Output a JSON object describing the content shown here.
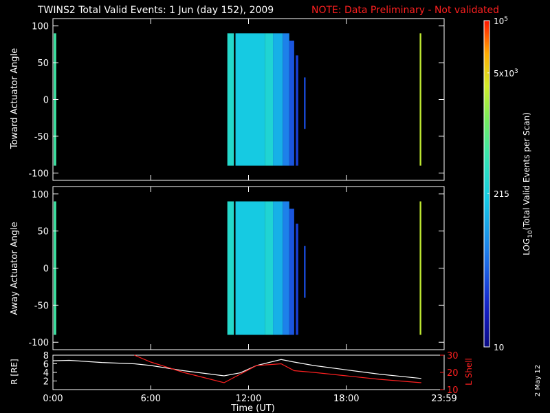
{
  "header": {
    "title": "TWINS2  Total Valid Events:  1 Jun (day 152), 2009",
    "note": "NOTE: Data Preliminary - Not validated",
    "date_stamp": "2 May 12"
  },
  "colors": {
    "background": "#000000",
    "axes": "#ffffff",
    "note": "#ff2020",
    "l_shell": "#ff2020",
    "r_line": "#ffffff"
  },
  "chart_data": [
    {
      "type": "heatmap",
      "panel": "toward",
      "ylabel": "Toward Actuator Angle",
      "xlim": [
        0,
        24
      ],
      "ylim": [
        -110,
        110
      ],
      "yticks": [
        100,
        50,
        0,
        -50,
        -100
      ],
      "ytick_labels": [
        "100",
        "50",
        "0",
        "-50",
        "-100"
      ],
      "columns": [
        {
          "x0": 0.05,
          "x1": 0.2,
          "y0": -90,
          "y1": 90,
          "level": 0.6
        },
        {
          "x0": 10.7,
          "x1": 11.1,
          "y0": -90,
          "y1": 90,
          "level": 0.52
        },
        {
          "x0": 11.2,
          "x1": 13.0,
          "y0": -90,
          "y1": 90,
          "level": 0.46
        },
        {
          "x0": 13.0,
          "x1": 13.5,
          "y0": -90,
          "y1": 90,
          "level": 0.5
        },
        {
          "x0": 13.5,
          "x1": 14.1,
          "y0": -90,
          "y1": 90,
          "level": 0.4
        },
        {
          "x0": 14.1,
          "x1": 14.5,
          "y0": -90,
          "y1": 90,
          "level": 0.3
        },
        {
          "x0": 14.5,
          "x1": 14.8,
          "y0": -90,
          "y1": 80,
          "level": 0.22
        },
        {
          "x0": 14.9,
          "x1": 15.05,
          "y0": -90,
          "y1": 60,
          "level": 0.18
        },
        {
          "x0": 15.4,
          "x1": 15.5,
          "y0": -40,
          "y1": 30,
          "level": 0.2
        },
        {
          "x0": 22.5,
          "x1": 22.6,
          "y0": -90,
          "y1": 90,
          "level": 0.78
        }
      ]
    },
    {
      "type": "heatmap",
      "panel": "away",
      "ylabel": "Away Actuator Angle",
      "xlim": [
        0,
        24
      ],
      "ylim": [
        -110,
        110
      ],
      "yticks": [
        100,
        50,
        0,
        -50,
        -100
      ],
      "ytick_labels": [
        "100",
        "50",
        "0",
        "-50",
        "-100"
      ],
      "columns": [
        {
          "x0": 0.05,
          "x1": 0.2,
          "y0": -90,
          "y1": 90,
          "level": 0.6
        },
        {
          "x0": 10.7,
          "x1": 11.1,
          "y0": -90,
          "y1": 90,
          "level": 0.52
        },
        {
          "x0": 11.2,
          "x1": 13.0,
          "y0": -90,
          "y1": 90,
          "level": 0.46
        },
        {
          "x0": 13.0,
          "x1": 13.5,
          "y0": -90,
          "y1": 90,
          "level": 0.5
        },
        {
          "x0": 13.5,
          "x1": 14.1,
          "y0": -90,
          "y1": 90,
          "level": 0.4
        },
        {
          "x0": 14.1,
          "x1": 14.5,
          "y0": -90,
          "y1": 90,
          "level": 0.3
        },
        {
          "x0": 14.5,
          "x1": 14.8,
          "y0": -90,
          "y1": 80,
          "level": 0.22
        },
        {
          "x0": 14.9,
          "x1": 15.05,
          "y0": -90,
          "y1": 60,
          "level": 0.18
        },
        {
          "x0": 15.4,
          "x1": 15.5,
          "y0": -40,
          "y1": 30,
          "level": 0.2
        },
        {
          "x0": 22.5,
          "x1": 22.6,
          "y0": -90,
          "y1": 90,
          "level": 0.78
        }
      ]
    },
    {
      "type": "line",
      "panel": "orbit",
      "xlabel": "Time (UT)",
      "xlim": [
        0,
        24
      ],
      "xticks": [
        0,
        6,
        12,
        18,
        24
      ],
      "xtick_labels": [
        "0:00",
        "6:00",
        "12:00",
        "18:00",
        "23:59"
      ],
      "ylabel_left": "R [RE]",
      "ylim_left": [
        0,
        8
      ],
      "yticks_left": [
        8,
        6,
        4,
        2
      ],
      "ytick_labels_left": [
        "8",
        "6",
        "4",
        "2"
      ],
      "ylabel_right": "L Shell",
      "ylim_right": [
        10,
        30
      ],
      "yticks_right": [
        30,
        20,
        10
      ],
      "ytick_labels_right": [
        "30",
        "20",
        "10"
      ],
      "ytick_labels_right_minor": [
        "10"
      ],
      "series": [
        {
          "axis": "left",
          "color": "#ffffff",
          "x": [
            0,
            1,
            3,
            5,
            6,
            8,
            10.5,
            11.5,
            12.5,
            14,
            14.8,
            16,
            18,
            20,
            22.6
          ],
          "y": [
            6.7,
            6.8,
            6.3,
            6.0,
            5.6,
            4.4,
            3.2,
            3.9,
            5.6,
            7.0,
            6.4,
            5.6,
            4.6,
            3.6,
            2.6
          ]
        },
        {
          "axis": "right",
          "color": "#ff2020",
          "x": [
            5,
            6,
            8,
            10.5,
            11.5,
            12.5,
            14,
            14.8,
            16,
            18,
            20,
            22.6
          ],
          "y": [
            30,
            26,
            20,
            14,
            19,
            24,
            25,
            21,
            20,
            18,
            16,
            14
          ]
        }
      ]
    }
  ],
  "colorbar": {
    "label": "LOG10(Total Valid Events per Scan)",
    "label_prefix": "LOG",
    "label_sub": "10",
    "label_suffix": "(Total Valid  Events per Scan)",
    "ticks": [
      {
        "level": 1.0,
        "base": "10",
        "exp": "5"
      },
      {
        "level": 0.84,
        "base": "5x10",
        "exp": "3"
      },
      {
        "level": 0.47,
        "base": "215",
        "exp": ""
      },
      {
        "level": 0.0,
        "base": "10",
        "exp": ""
      }
    ]
  }
}
